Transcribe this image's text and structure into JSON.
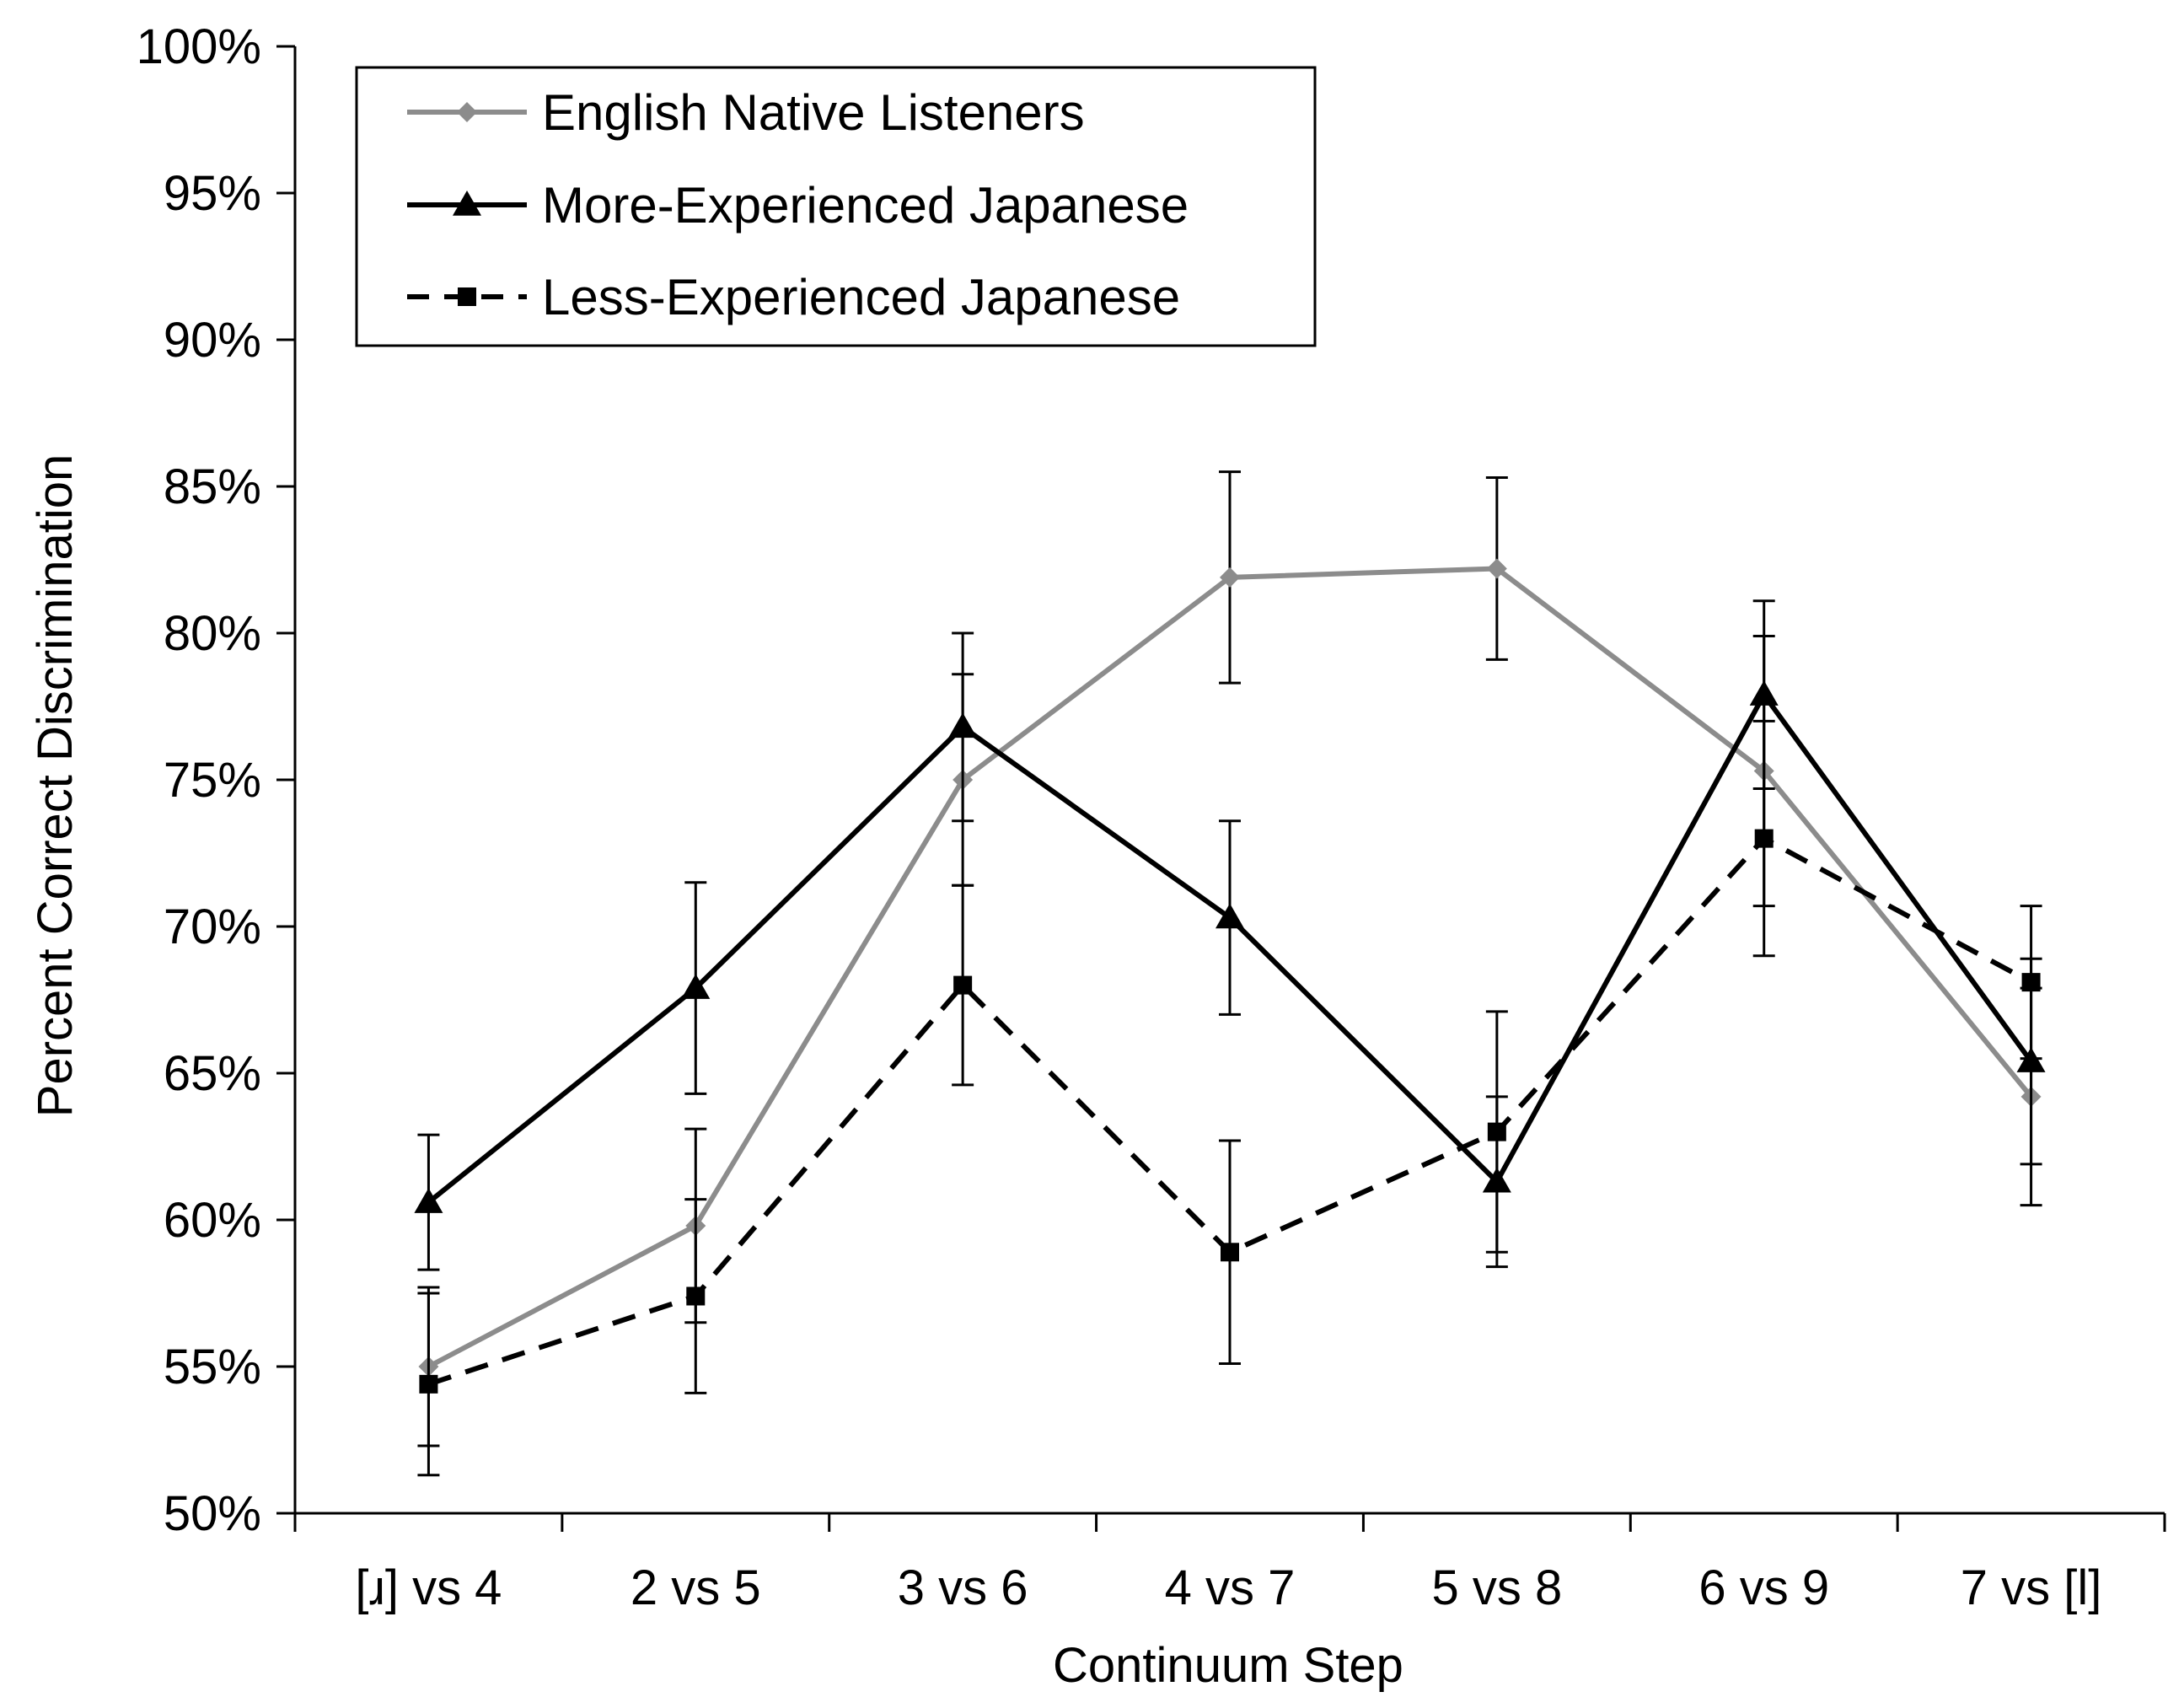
{
  "chart_data": {
    "type": "line",
    "title": "",
    "xlabel": "Continuum Step",
    "ylabel": "Percent Correct Discrimination",
    "categories": [
      "[ɹ] vs 4",
      "2 vs 5",
      "3 vs 6",
      "4 vs 7",
      "5 vs 8",
      "6 vs 9",
      "7 vs [l]"
    ],
    "ylim": [
      50,
      100
    ],
    "yticks": [
      50,
      55,
      60,
      65,
      70,
      75,
      80,
      85,
      90,
      95,
      100
    ],
    "ytick_labels": [
      "50%",
      "55%",
      "60%",
      "65%",
      "70%",
      "75%",
      "80%",
      "85%",
      "90%",
      "95%",
      "100%"
    ],
    "grid": false,
    "legend_position": "top-left",
    "series": [
      {
        "name": "English Native Listeners",
        "color": "#8c8c8c",
        "marker": "diamond",
        "line_style": "solid",
        "values": [
          55.0,
          59.8,
          75.0,
          81.9,
          82.2,
          75.3,
          64.2
        ],
        "error": [
          2.7,
          3.3,
          3.6,
          3.6,
          3.1,
          4.6,
          3.7
        ]
      },
      {
        "name": "More-Experienced Japanese",
        "color": "#000000",
        "marker": "triangle",
        "line_style": "solid",
        "values": [
          60.6,
          67.9,
          76.8,
          70.3,
          61.3,
          77.9,
          65.4
        ],
        "error": [
          2.3,
          3.6,
          3.2,
          3.3,
          2.9,
          3.2,
          3.5
        ]
      },
      {
        "name": "Less-Experienced Japanese",
        "color": "#000000",
        "marker": "square",
        "line_style": "dashed",
        "values": [
          54.4,
          57.4,
          68.0,
          58.9,
          63.0,
          73.0,
          68.1
        ],
        "error": [
          3.1,
          3.3,
          3.4,
          3.8,
          4.1,
          4.0,
          2.6
        ]
      }
    ]
  }
}
